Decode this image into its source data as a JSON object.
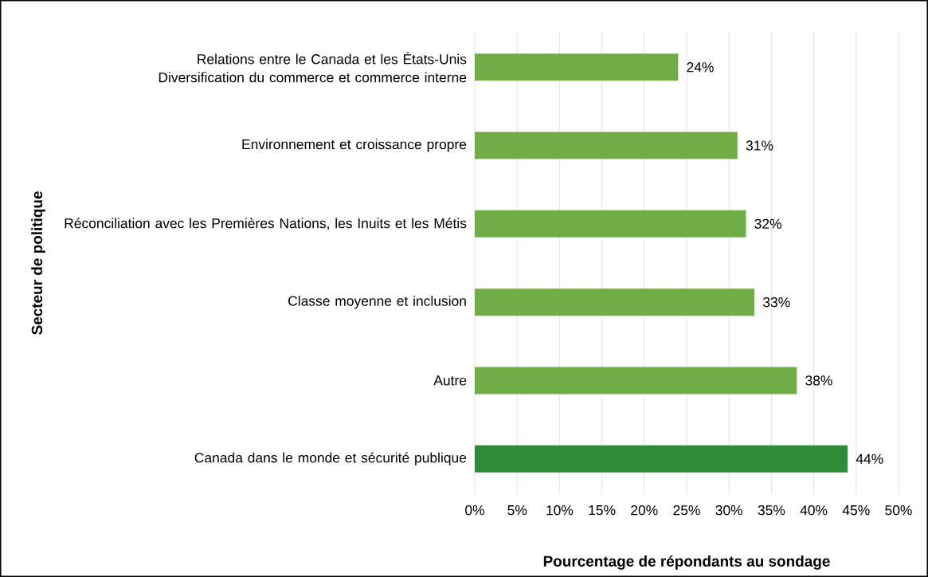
{
  "chart_data": {
    "type": "bar",
    "orientation": "horizontal",
    "xlabel": "Pourcentage de répondants au sondage",
    "ylabel": "Secteur de politique",
    "categories": [
      "Relations entre le Canada et les États-Unis Diversification du commerce et commerce interne",
      "Environnement et croissance propre",
      "Réconciliation avec les Premières Nations, les Inuits et les Métis",
      "Classe moyenne et inclusion",
      "Autre",
      "Canada dans le monde et sécurité publique"
    ],
    "values": [
      24,
      31,
      32,
      33,
      38,
      44
    ],
    "value_labels": [
      "24%",
      "31%",
      "32%",
      "33%",
      "38%",
      "44%"
    ],
    "colors": [
      "#70ad47",
      "#70ad47",
      "#70ad47",
      "#70ad47",
      "#70ad47",
      "#2e8b36"
    ],
    "xlim": [
      0,
      50
    ],
    "xticks": [
      {
        "value": 0,
        "label": "0%"
      },
      {
        "value": 5,
        "label": "5%"
      },
      {
        "value": 10,
        "label": "10%"
      },
      {
        "value": 15,
        "label": "15%"
      },
      {
        "value": 20,
        "label": "20%"
      },
      {
        "value": 25,
        "label": "25%"
      },
      {
        "value": 30,
        "label": "30%"
      },
      {
        "value": 35,
        "label": "35%"
      },
      {
        "value": 40,
        "label": "40%"
      },
      {
        "value": 45,
        "label": "45%"
      },
      {
        "value": 50,
        "label": "50%"
      }
    ],
    "grid": "x"
  }
}
